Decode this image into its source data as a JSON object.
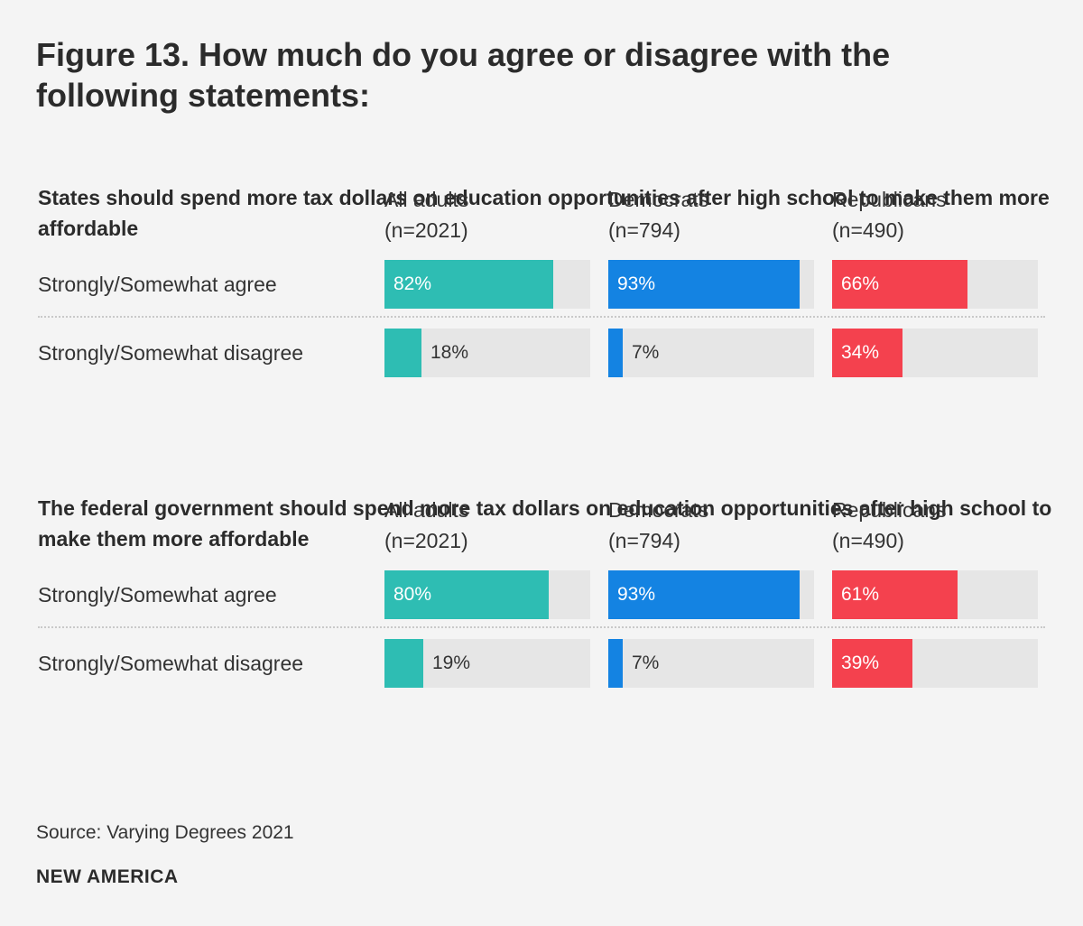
{
  "title": "Figure 13. How much do you agree or disagree with the following statements:",
  "columns": [
    {
      "name": "All adults",
      "n": "(n=2021)",
      "color": "#2ebdb3"
    },
    {
      "name": "Democrats",
      "n": "(n=794)",
      "color": "#1483e2"
    },
    {
      "name": "Republicans",
      "n": "(n=490)",
      "color": "#f4414e"
    }
  ],
  "chart_data": [
    {
      "type": "bar",
      "title": "States should spend more tax dollars on education opportunities after high school to make them more affordable",
      "categories": [
        "Strongly/Somewhat agree",
        "Strongly/Somewhat disagree"
      ],
      "series": [
        {
          "name": "All adults",
          "n": "(n=2021)",
          "values": [
            82,
            18
          ],
          "labels": [
            "82%",
            "18%"
          ]
        },
        {
          "name": "Democrats",
          "n": "(n=794)",
          "values": [
            93,
            7
          ],
          "labels": [
            "93%",
            "7%"
          ]
        },
        {
          "name": "Republicans",
          "n": "(n=490)",
          "values": [
            66,
            34
          ],
          "labels": [
            "66%",
            "34%"
          ]
        }
      ],
      "ylim": [
        0,
        100
      ]
    },
    {
      "type": "bar",
      "title": "The federal government should spend more tax dollars on education opportunities after high school to make them more affordable",
      "categories": [
        "Strongly/Somewhat agree",
        "Strongly/Somewhat disagree"
      ],
      "series": [
        {
          "name": "All adults",
          "n": "(n=2021)",
          "values": [
            80,
            19
          ],
          "labels": [
            "80%",
            "19%"
          ]
        },
        {
          "name": "Democrats",
          "n": "(n=794)",
          "values": [
            93,
            7
          ],
          "labels": [
            "93%",
            "7%"
          ]
        },
        {
          "name": "Republicans",
          "n": "(n=490)",
          "values": [
            61,
            39
          ],
          "labels": [
            "61%",
            "39%"
          ]
        }
      ],
      "ylim": [
        0,
        100
      ]
    }
  ],
  "source": "Source: Varying Degrees 2021",
  "brand": "NEW AMERICA"
}
